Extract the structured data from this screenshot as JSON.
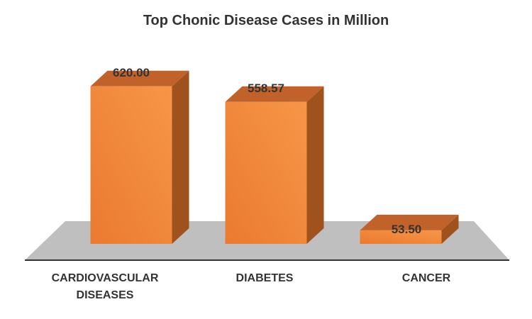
{
  "chart_data": {
    "type": "bar",
    "title": "Top Chonic Disease Cases in Million",
    "categories": [
      "CARDIOVASCULAR\nDISEASES",
      "DIABETES",
      "CANCER"
    ],
    "values": [
      620.0,
      558.57,
      53.5
    ],
    "value_labels": [
      "620.00",
      "558.57",
      "53.50"
    ],
    "ylim": [
      0,
      650
    ],
    "grid": false,
    "legend": "none",
    "style": "3d-column",
    "colors": {
      "bar_front": "#EF7D32",
      "bar_front_light": "#F79646",
      "bar_side": "#A0521E",
      "bar_top": "#C0622A",
      "floor": "#BFBFBF",
      "axis": "#333333"
    }
  }
}
